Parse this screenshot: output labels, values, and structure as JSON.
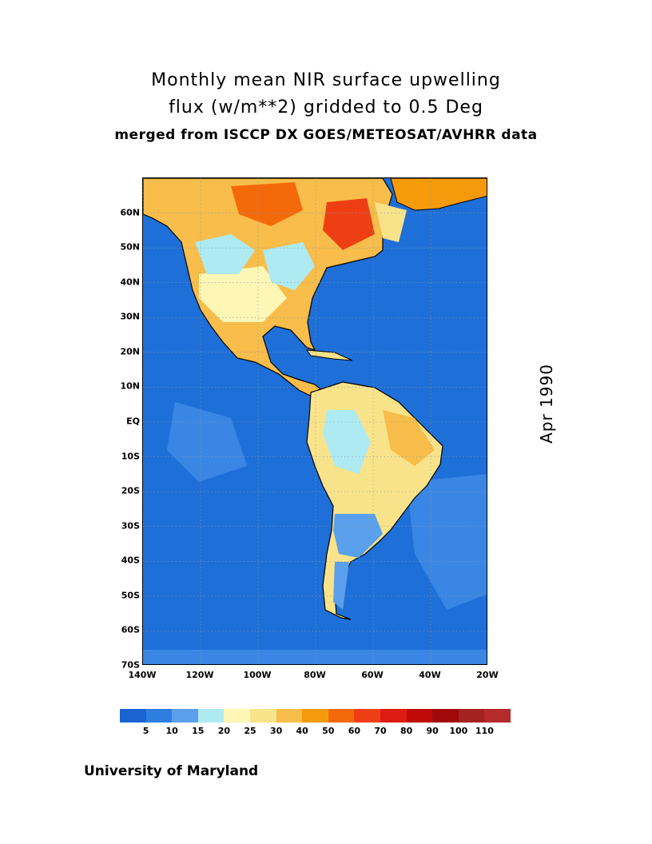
{
  "title": {
    "line1": "Monthly mean NIR surface upwelling",
    "line2": "flux (w/m**2) gridded to 0.5 Deg",
    "line3": "merged from ISCCP DX GOES/METEOSAT/AVHRR data"
  },
  "date_label": "Apr 1990",
  "credit": "University of Maryland",
  "map": {
    "projection": "cylindrical lat-lon",
    "lon_range": [
      -140,
      -20
    ],
    "lat_range": [
      -70,
      70
    ],
    "grid": "dotted",
    "lat_ticks": [
      "60N",
      "50N",
      "40N",
      "30N",
      "20N",
      "10N",
      "EQ",
      "10S",
      "20S",
      "30S",
      "40S",
      "50S",
      "60S",
      "70S"
    ],
    "lat_values": [
      60,
      50,
      40,
      30,
      20,
      10,
      0,
      -10,
      -20,
      -30,
      -40,
      -50,
      -60,
      -70
    ],
    "lon_ticks": [
      "140W",
      "120W",
      "100W",
      "80W",
      "60W",
      "40W",
      "20W"
    ],
    "lon_values": [
      -140,
      -120,
      -100,
      -80,
      -60,
      -40,
      -20
    ]
  },
  "legend": {
    "colors": [
      "#1a64d2",
      "#2e7ee0",
      "#5aa0ec",
      "#aeeaf2",
      "#fdf6b4",
      "#f9e38a",
      "#f8bd4a",
      "#f59a0a",
      "#f46a0a",
      "#ee3f14",
      "#dc1c10",
      "#c00a06",
      "#a0080a",
      "#a52222",
      "#b52a2a"
    ],
    "labels": [
      "5",
      "10",
      "15",
      "20",
      "25",
      "30",
      "40",
      "50",
      "60",
      "70",
      "80",
      "90",
      "100",
      "110"
    ]
  },
  "colors": {
    "ocean": "#1e6fd8",
    "coast": "#000000"
  }
}
